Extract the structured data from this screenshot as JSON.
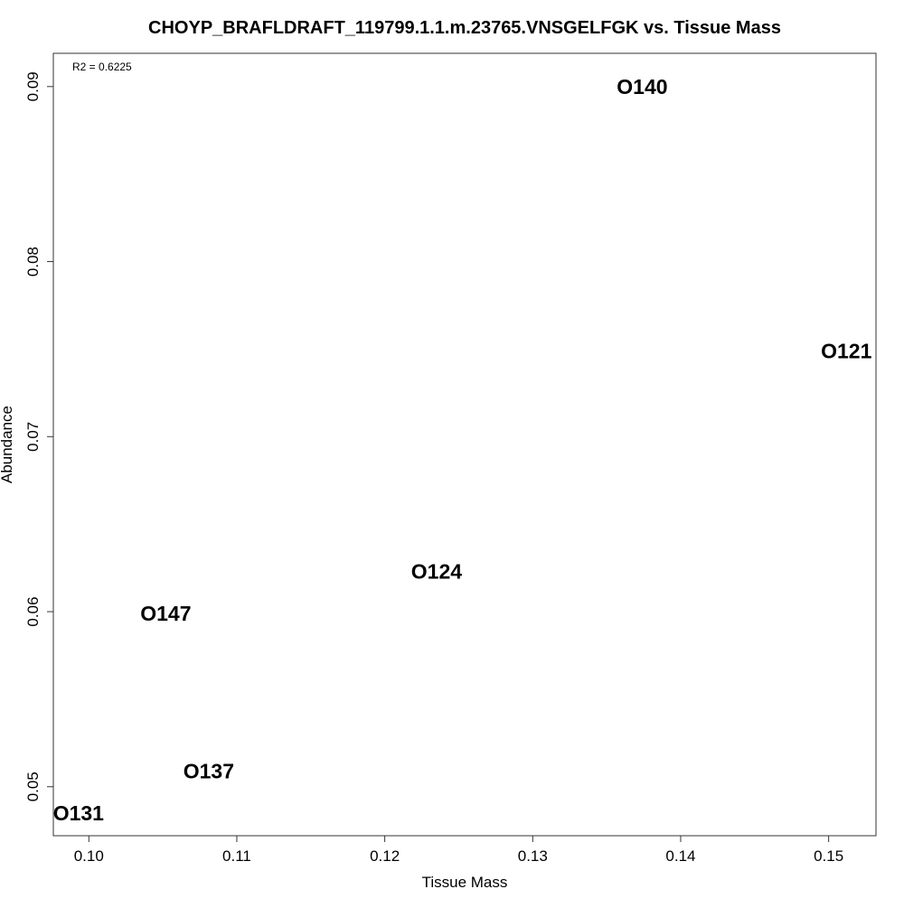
{
  "chart_data": {
    "type": "scatter",
    "title": "CHOYP_BRAFLDRAFT_119799.1.1.m.23765.VNSGELFGK vs. Tissue Mass",
    "xlabel": "Tissue Mass",
    "ylabel": "Abundance",
    "annotation": "R2 = 0.6225",
    "xlim": [
      0.0976,
      0.1532
    ],
    "ylim": [
      0.0472,
      0.0919
    ],
    "x_ticks": [
      "0.10",
      "0.11",
      "0.12",
      "0.13",
      "0.14",
      "0.15"
    ],
    "y_ticks": [
      "0.05",
      "0.06",
      "0.07",
      "0.08",
      "0.09"
    ],
    "grid": false,
    "legend": "none",
    "points": [
      {
        "label": "O140",
        "x": 0.1374,
        "y": 0.09
      },
      {
        "label": "O121",
        "x": 0.1512,
        "y": 0.0749
      },
      {
        "label": "O124",
        "x": 0.1235,
        "y": 0.0623
      },
      {
        "label": "O147",
        "x": 0.1052,
        "y": 0.0599
      },
      {
        "label": "O137",
        "x": 0.1081,
        "y": 0.0509
      },
      {
        "label": "O131",
        "x": 0.0993,
        "y": 0.0485
      }
    ]
  }
}
